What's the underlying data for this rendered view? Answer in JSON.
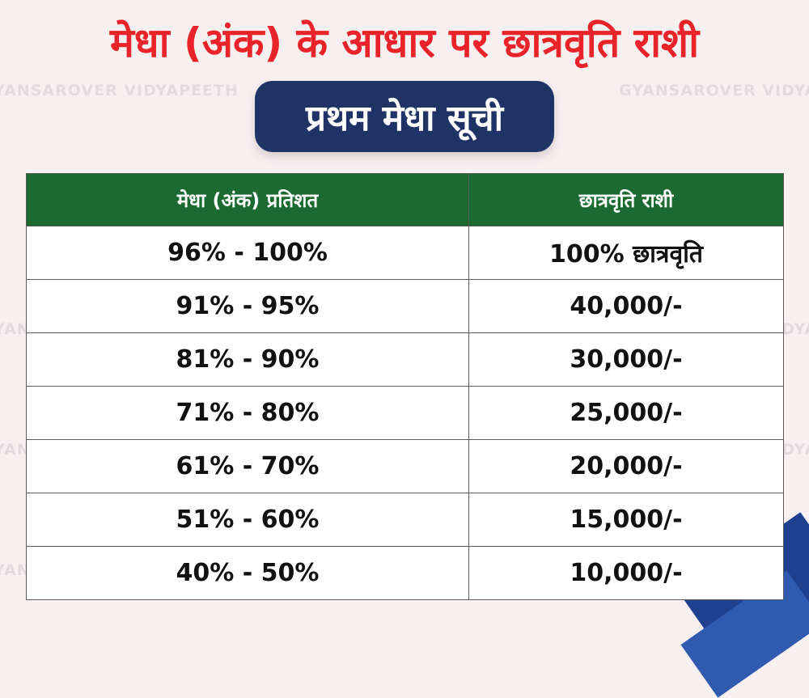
{
  "title": "मेधा (अंक) के आधार पर छात्रवृति राशी",
  "subtitle": "प्रथम मेधा सूची",
  "watermark_text": "GYANSAROVER VIDYAPEETH",
  "colors": {
    "title_red": "#e8232a",
    "pill_navy": "#1f3366",
    "header_green": "#1b6a31",
    "background": "#f7f0f1"
  },
  "table": {
    "headers": [
      "मेधा (अंक) प्रतिशत",
      "छात्रवृति राशी"
    ],
    "rows": [
      [
        "96% - 100%",
        "100% छात्रवृति"
      ],
      [
        "91% - 95%",
        "40,000/-"
      ],
      [
        "81% - 90%",
        "30,000/-"
      ],
      [
        "71% - 80%",
        "25,000/-"
      ],
      [
        "61% - 70%",
        "20,000/-"
      ],
      [
        "51% - 60%",
        "15,000/-"
      ],
      [
        "40% - 50%",
        "10,000/-"
      ]
    ]
  }
}
